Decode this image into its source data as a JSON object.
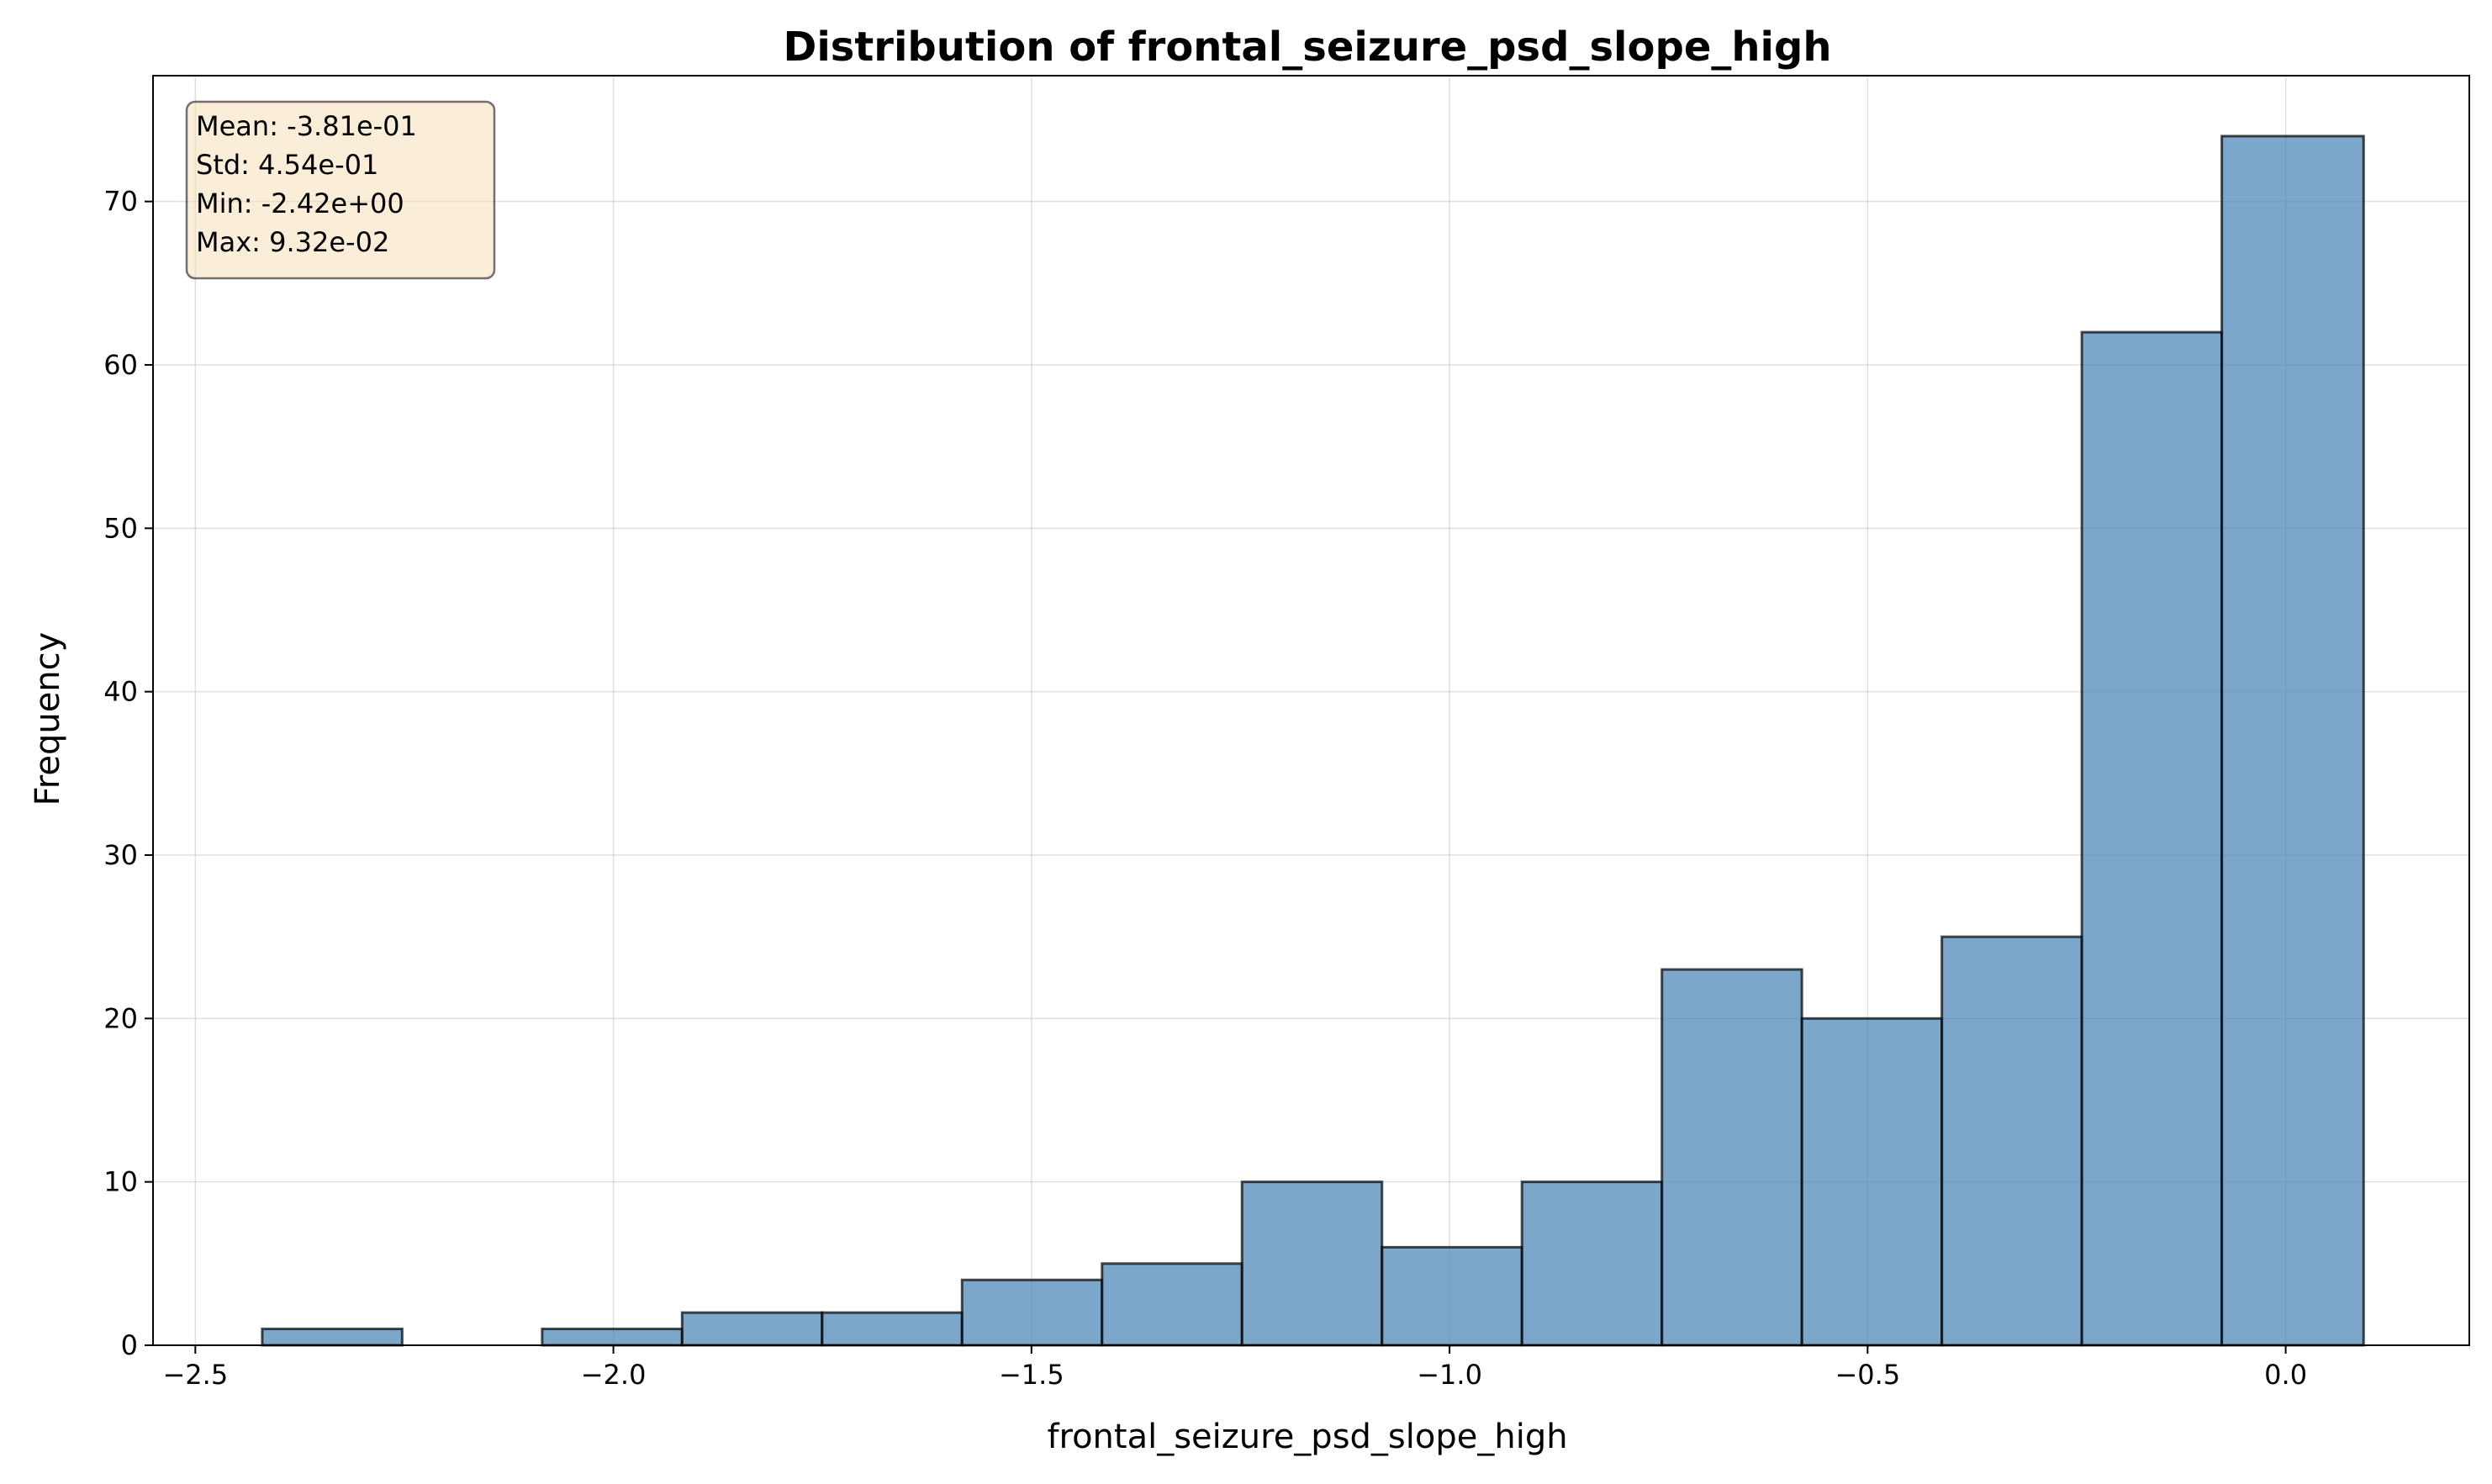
{
  "chart_data": {
    "type": "bar",
    "title": "Distribution of frontal_seizure_psd_slope_high",
    "xlabel": "frontal_seizure_psd_slope_high",
    "ylabel": "Frequency",
    "xlim": [
      -2.5506,
      0.2196
    ],
    "ylim": [
      0,
      77.7
    ],
    "grid": true,
    "bin_edges": [
      -2.42,
      -2.2526,
      -2.0852,
      -1.9178,
      -1.7504,
      -1.583,
      -1.4156,
      -1.2482,
      -1.0808,
      -0.9134,
      -0.746,
      -0.5786,
      -0.4112,
      -0.2438,
      -0.0764,
      0.0932
    ],
    "values": [
      1,
      0,
      1,
      2,
      2,
      4,
      5,
      10,
      6,
      10,
      23,
      20,
      25,
      62,
      74
    ],
    "x_ticks": [
      {
        "value": -2.5,
        "label": "−2.5"
      },
      {
        "value": -2.0,
        "label": "−2.0"
      },
      {
        "value": -1.5,
        "label": "−1.5"
      },
      {
        "value": -1.0,
        "label": "−1.0"
      },
      {
        "value": -0.5,
        "label": "−0.5"
      },
      {
        "value": 0.0,
        "label": "0.0"
      }
    ],
    "y_ticks": [
      {
        "value": 0,
        "label": "0"
      },
      {
        "value": 10,
        "label": "10"
      },
      {
        "value": 20,
        "label": "20"
      },
      {
        "value": 30,
        "label": "30"
      },
      {
        "value": 40,
        "label": "40"
      },
      {
        "value": 50,
        "label": "50"
      },
      {
        "value": 60,
        "label": "60"
      },
      {
        "value": 70,
        "label": "70"
      }
    ],
    "stats_box": {
      "placement": "top-left",
      "lines": [
        "Mean: -3.81e-01",
        "Std: 4.54e-01",
        "Min: -2.42e+00",
        "Max: 9.32e-02"
      ]
    },
    "colors": {
      "bar_fill": "#4682b4",
      "bar_edge": "#000000"
    }
  }
}
